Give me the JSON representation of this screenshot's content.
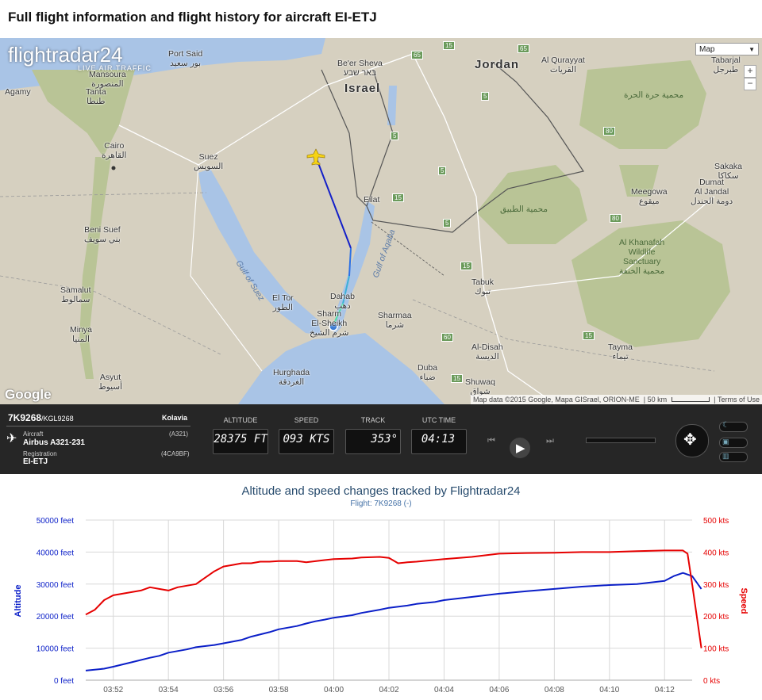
{
  "page_title": "Full flight information and flight history for aircraft EI-ETJ",
  "map": {
    "map_type": "Map",
    "zoom_in": "+",
    "zoom_out": "−",
    "attribution": "Map data ©2015 Google, Mapa GISrael, ORION-ME",
    "scale": "50 km",
    "terms": "Terms of Use",
    "google_logo": "Google",
    "fr24_logo": "flightradar24",
    "fr24_tagline": "LIVE AIR TRAFFIC",
    "labels": [
      {
        "text": "Port Said\nبور سعيد",
        "cls": ""
      },
      {
        "text": "Be'er Sheva\nבאר שבע",
        "cls": ""
      },
      {
        "text": "Israel",
        "cls": "big"
      },
      {
        "text": "Jordan",
        "cls": "big"
      },
      {
        "text": "Al Qurayyat\nالقريات",
        "cls": ""
      },
      {
        "text": "Tabarjal\nطبرجل",
        "cls": ""
      },
      {
        "text": "محمية حرة الحرة",
        "cls": "green"
      },
      {
        "text": "Cairo\nالقاهرة",
        "cls": ""
      },
      {
        "text": "Suez\nالسويس",
        "cls": ""
      },
      {
        "text": "Tanta\nطنطا",
        "cls": ""
      },
      {
        "text": "Agamy",
        "cls": ""
      },
      {
        "text": "Mansoura\nالمنصورة",
        "cls": ""
      },
      {
        "text": "Eilat",
        "cls": ""
      },
      {
        "text": "Sakaka\nسكاكا",
        "cls": ""
      },
      {
        "text": "Dumat\nAl Jandal\nدومة الجندل",
        "cls": ""
      },
      {
        "text": "Meegowa\nميقوع",
        "cls": ""
      },
      {
        "text": "محمية الطبيق",
        "cls": "green"
      },
      {
        "text": "Al Khanafah\nWildlife\nSanctuary\nمحمية الخنفة",
        "cls": "green"
      },
      {
        "text": "Beni Suef\nبني سويف",
        "cls": ""
      },
      {
        "text": "Samalut\nسمالوط",
        "cls": ""
      },
      {
        "text": "Minya\nالمنيا",
        "cls": ""
      },
      {
        "text": "Asyut\nأسيوط",
        "cls": ""
      },
      {
        "text": "Hurghada\nالغردقة",
        "cls": ""
      },
      {
        "text": "El Tor\nالطور",
        "cls": ""
      },
      {
        "text": "Dahab\nدهب",
        "cls": ""
      },
      {
        "text": "Sharm\nEl-Sheikh\nشرم الشيخ",
        "cls": ""
      },
      {
        "text": "Sharmaa\nشرما",
        "cls": ""
      },
      {
        "text": "Tabuk\nتبوك",
        "cls": ""
      },
      {
        "text": "Al-Disah\nالديسة",
        "cls": ""
      },
      {
        "text": "Tayma\nتيماء",
        "cls": ""
      },
      {
        "text": "Duba\nضباء",
        "cls": ""
      },
      {
        "text": "Shuwaq\nشواق",
        "cls": ""
      },
      {
        "text": "Gulf of Suez",
        "cls": "sea"
      },
      {
        "text": "Gulf of Aqaba",
        "cls": "sea"
      }
    ],
    "road_shields": [
      "65",
      "15",
      "65",
      "5",
      "5",
      "5",
      "15",
      "5",
      "15",
      "80",
      "80",
      "15",
      "60",
      "15",
      "65"
    ]
  },
  "panel": {
    "flight": "7K9268",
    "callsign": "/KGL9268",
    "airline": "Kolavia",
    "aircraft_label": "Aircraft",
    "aircraft_code": "(A321)",
    "aircraft": "Airbus A321-231",
    "registration_label": "Registration",
    "registration_code": "(4CA9BF)",
    "registration": "EI-ETJ",
    "gauges": [
      {
        "title": "ALTITUDE",
        "value": "28375 FT"
      },
      {
        "title": "SPEED",
        "value": "093 KTS"
      },
      {
        "title": "TRACK",
        "value": "353°"
      },
      {
        "title": "UTC TIME",
        "value": "04:13"
      }
    ],
    "controls": {
      "rewind": "⏮",
      "play": "▶",
      "forward": "⏭"
    }
  },
  "chart_data": {
    "type": "line",
    "title": "Altitude and speed changes tracked by Flightradar24",
    "subtitle": "Flight: 7K9268 (-)",
    "ylabel": "Altitude",
    "y2label": "Speed",
    "x_ticks": [
      "03:52",
      "03:54",
      "03:56",
      "03:58",
      "04:00",
      "04:02",
      "04:04",
      "04:06",
      "04:08",
      "04:10",
      "04:12"
    ],
    "y_ticks": [
      "0 feet",
      "10000 feet",
      "20000 feet",
      "30000 feet",
      "40000 feet",
      "50000 feet"
    ],
    "y2_ticks": [
      "0 kts",
      "100 kts",
      "200 kts",
      "300 kts",
      "400 kts",
      "500 kts"
    ],
    "ylim": [
      0,
      50000
    ],
    "y2lim": [
      0,
      500
    ],
    "xlim_minutes": [
      231,
      253
    ],
    "series": [
      {
        "name": "Altitude",
        "axis": "left",
        "color": "#0b1fc8",
        "x": [
          "03:51:00",
          "03:51:40",
          "03:52:00",
          "03:52:40",
          "03:53:20",
          "03:53:40",
          "03:54:00",
          "03:54:40",
          "03:55:00",
          "03:55:40",
          "03:56:00",
          "03:56:40",
          "03:57:00",
          "03:57:40",
          "03:58:00",
          "03:58:40",
          "03:59:00",
          "03:59:20",
          "03:59:40",
          "04:00:00",
          "04:00:40",
          "04:01:00",
          "04:01:40",
          "04:02:00",
          "04:02:40",
          "04:03:00",
          "04:03:40",
          "04:04:00",
          "04:05:00",
          "04:06:00",
          "04:07:00",
          "04:08:00",
          "04:09:00",
          "04:10:00",
          "04:11:00",
          "04:12:00",
          "04:12:20",
          "04:12:40",
          "04:13:00",
          "04:13:20"
        ],
        "values": [
          3000,
          3600,
          4200,
          5600,
          7000,
          7600,
          8600,
          9600,
          10300,
          11000,
          11500,
          12600,
          13600,
          15000,
          15900,
          16900,
          17700,
          18400,
          18900,
          19500,
          20300,
          21000,
          22000,
          22600,
          23300,
          23800,
          24400,
          25000,
          26000,
          27000,
          27800,
          28500,
          29200,
          29700,
          30000,
          31000,
          32500,
          33500,
          32500,
          28500
        ]
      },
      {
        "name": "Speed",
        "axis": "right",
        "color": "#e60000",
        "x": [
          "03:51:00",
          "03:51:20",
          "03:51:40",
          "03:52:00",
          "03:52:20",
          "03:52:40",
          "03:53:00",
          "03:53:20",
          "03:53:40",
          "03:54:00",
          "03:54:20",
          "03:54:40",
          "03:55:00",
          "03:55:20",
          "03:55:40",
          "03:56:00",
          "03:56:20",
          "03:56:40",
          "03:57:00",
          "03:57:20",
          "03:57:40",
          "03:58:00",
          "03:58:40",
          "03:59:00",
          "03:59:40",
          "04:00:00",
          "04:00:40",
          "04:01:00",
          "04:01:40",
          "04:02:00",
          "04:02:20",
          "04:02:40",
          "04:03:00",
          "04:04:00",
          "04:05:00",
          "04:06:00",
          "04:07:00",
          "04:08:00",
          "04:09:00",
          "04:10:00",
          "04:11:00",
          "04:12:00",
          "04:12:40",
          "04:12:50",
          "04:13:00",
          "04:13:20"
        ],
        "values": [
          205,
          220,
          250,
          265,
          270,
          275,
          280,
          290,
          285,
          280,
          290,
          295,
          300,
          320,
          340,
          355,
          360,
          365,
          365,
          370,
          370,
          372,
          372,
          368,
          375,
          378,
          380,
          383,
          385,
          382,
          365,
          368,
          370,
          378,
          385,
          395,
          397,
          398,
          400,
          400,
          403,
          405,
          405,
          395,
          300,
          100
        ]
      }
    ],
    "grid": true
  }
}
